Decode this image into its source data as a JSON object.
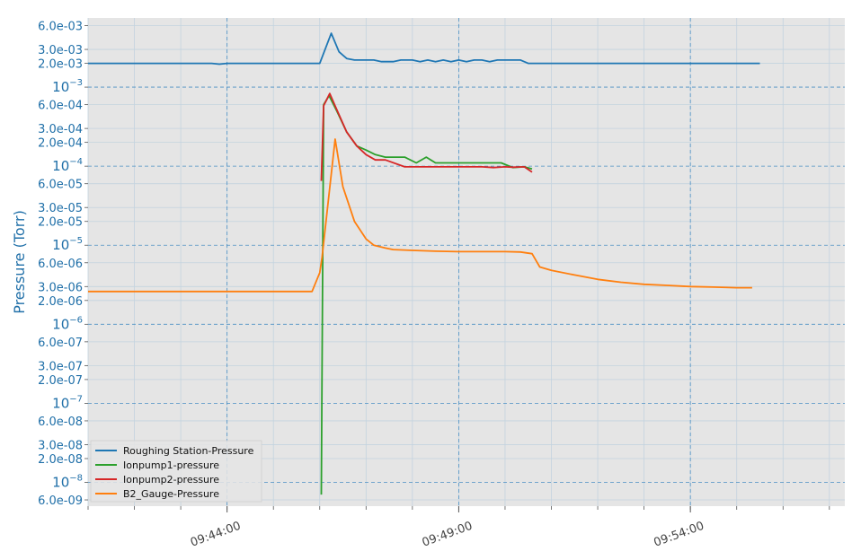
{
  "chart_data": {
    "type": "line",
    "title": "",
    "xlabel": "",
    "ylabel": "Pressure (Torr)",
    "yscale": "log",
    "ylim": [
      5e-09,
      0.0075
    ],
    "xlim": [
      "09:41:00",
      "09:57:20"
    ],
    "grid": true,
    "legend_position": "lower-left",
    "background_color": "#e5e5e5",
    "x_ticks": [
      {
        "time": "09:44:00",
        "label": "09:44:00"
      },
      {
        "time": "09:49:00",
        "label": "09:49:00"
      },
      {
        "time": "09:54:00",
        "label": "09:54:00"
      }
    ],
    "y_ticks": [
      {
        "value": 0.006,
        "label": "6.0e-03",
        "major": false
      },
      {
        "value": 0.003,
        "label": "3.0e-03",
        "major": false
      },
      {
        "value": 0.002,
        "label": "2.0e-03",
        "major": false
      },
      {
        "value": 0.001,
        "label": "10",
        "exp": "−3",
        "major": true
      },
      {
        "value": 0.0006,
        "label": "6.0e-04",
        "major": false
      },
      {
        "value": 0.0003,
        "label": "3.0e-04",
        "major": false
      },
      {
        "value": 0.0002,
        "label": "2.0e-04",
        "major": false
      },
      {
        "value": 0.0001,
        "label": "10",
        "exp": "−4",
        "major": true
      },
      {
        "value": 6e-05,
        "label": "6.0e-05",
        "major": false
      },
      {
        "value": 3e-05,
        "label": "3.0e-05",
        "major": false
      },
      {
        "value": 2e-05,
        "label": "2.0e-05",
        "major": false
      },
      {
        "value": 1e-05,
        "label": "10",
        "exp": "−5",
        "major": true
      },
      {
        "value": 6e-06,
        "label": "6.0e-06",
        "major": false
      },
      {
        "value": 3e-06,
        "label": "3.0e-06",
        "major": false
      },
      {
        "value": 2e-06,
        "label": "2.0e-06",
        "major": false
      },
      {
        "value": 1e-06,
        "label": "10",
        "exp": "−6",
        "major": true
      },
      {
        "value": 6e-07,
        "label": "6.0e-07",
        "major": false
      },
      {
        "value": 3e-07,
        "label": "3.0e-07",
        "major": false
      },
      {
        "value": 2e-07,
        "label": "2.0e-07",
        "major": false
      },
      {
        "value": 1e-07,
        "label": "10",
        "exp": "−7",
        "major": true
      },
      {
        "value": 6e-08,
        "label": "6.0e-08",
        "major": false
      },
      {
        "value": 3e-08,
        "label": "3.0e-08",
        "major": false
      },
      {
        "value": 2e-08,
        "label": "2.0e-08",
        "major": false
      },
      {
        "value": 1e-08,
        "label": "10",
        "exp": "−8",
        "major": true
      },
      {
        "value": 6e-09,
        "label": "6.0e-09",
        "major": false
      }
    ],
    "series": [
      {
        "name": "Roughing Station-Pressure",
        "color": "#1f77b4",
        "points": [
          [
            "09:41:00",
            0.002
          ],
          [
            "09:43:40",
            0.002
          ],
          [
            "09:43:50",
            0.00195
          ],
          [
            "09:44:00",
            0.002
          ],
          [
            "09:46:00",
            0.002
          ],
          [
            "09:46:15",
            0.0048
          ],
          [
            "09:46:25",
            0.0028
          ],
          [
            "09:46:35",
            0.0023
          ],
          [
            "09:46:45",
            0.0022
          ],
          [
            "09:47:10",
            0.0022
          ],
          [
            "09:47:20",
            0.0021
          ],
          [
            "09:47:35",
            0.0021
          ],
          [
            "09:47:45",
            0.0022
          ],
          [
            "09:48:00",
            0.0022
          ],
          [
            "09:48:10",
            0.0021
          ],
          [
            "09:48:20",
            0.0022
          ],
          [
            "09:48:30",
            0.0021
          ],
          [
            "09:48:40",
            0.0022
          ],
          [
            "09:48:50",
            0.0021
          ],
          [
            "09:49:00",
            0.0022
          ],
          [
            "09:49:10",
            0.0021
          ],
          [
            "09:49:20",
            0.0022
          ],
          [
            "09:49:30",
            0.0022
          ],
          [
            "09:49:40",
            0.0021
          ],
          [
            "09:49:50",
            0.0022
          ],
          [
            "09:50:20",
            0.0022
          ],
          [
            "09:50:30",
            0.002
          ],
          [
            "09:55:30",
            0.002
          ]
        ]
      },
      {
        "name": "Ionpump1-pressure",
        "color": "#2ca02c",
        "points": [
          [
            "09:46:02",
            7e-09
          ],
          [
            "09:46:05",
            0.0006
          ],
          [
            "09:46:12",
            0.00078
          ],
          [
            "09:46:22",
            0.0005
          ],
          [
            "09:46:35",
            0.00027
          ],
          [
            "09:46:48",
            0.00018
          ],
          [
            "09:47:00",
            0.00016
          ],
          [
            "09:47:12",
            0.00014
          ],
          [
            "09:47:25",
            0.00013
          ],
          [
            "09:47:50",
            0.00013
          ],
          [
            "09:48:05",
            0.00011
          ],
          [
            "09:48:18",
            0.00013
          ],
          [
            "09:48:30",
            0.00011
          ],
          [
            "09:49:00",
            0.00011
          ],
          [
            "09:49:30",
            0.00011
          ],
          [
            "09:49:55",
            0.00011
          ],
          [
            "09:50:10",
            9.6e-05
          ],
          [
            "09:50:25",
            9.8e-05
          ],
          [
            "09:50:35",
            9.2e-05
          ]
        ]
      },
      {
        "name": "Ionpump2-pressure",
        "color": "#d62728",
        "points": [
          [
            "09:46:02",
            6.5e-05
          ],
          [
            "09:46:05",
            0.00058
          ],
          [
            "09:46:13",
            0.00083
          ],
          [
            "09:46:22",
            0.00052
          ],
          [
            "09:46:35",
            0.00027
          ],
          [
            "09:46:48",
            0.00018
          ],
          [
            "09:47:00",
            0.00014
          ],
          [
            "09:47:12",
            0.00012
          ],
          [
            "09:47:25",
            0.00012
          ],
          [
            "09:47:50",
            9.8e-05
          ],
          [
            "09:49:00",
            9.8e-05
          ],
          [
            "09:49:30",
            9.8e-05
          ],
          [
            "09:49:45",
            9.6e-05
          ],
          [
            "09:50:00",
            9.8e-05
          ],
          [
            "09:50:10",
            9.7e-05
          ],
          [
            "09:50:25",
            9.8e-05
          ],
          [
            "09:50:35",
            8.4e-05
          ]
        ]
      },
      {
        "name": "B2_Gauge-Pressure",
        "color": "#ff7f0e",
        "points": [
          [
            "09:41:00",
            2.6e-06
          ],
          [
            "09:45:50",
            2.6e-06
          ],
          [
            "09:46:00",
            4.5e-06
          ],
          [
            "09:46:03",
            7e-06
          ],
          [
            "09:46:20",
            0.00022
          ],
          [
            "09:46:30",
            5.5e-05
          ],
          [
            "09:46:45",
            2e-05
          ],
          [
            "09:47:00",
            1.2e-05
          ],
          [
            "09:47:10",
            1e-05
          ],
          [
            "09:47:25",
            9.2e-06
          ],
          [
            "09:47:35",
            8.8e-06
          ],
          [
            "09:48:00",
            8.6e-06
          ],
          [
            "09:48:30",
            8.4e-06
          ],
          [
            "09:49:00",
            8.3e-06
          ],
          [
            "09:49:30",
            8.3e-06
          ],
          [
            "09:50:00",
            8.3e-06
          ],
          [
            "09:50:20",
            8.2e-06
          ],
          [
            "09:50:35",
            7.8e-06
          ],
          [
            "09:50:45",
            5.3e-06
          ],
          [
            "09:51:00",
            4.8e-06
          ],
          [
            "09:51:30",
            4.2e-06
          ],
          [
            "09:52:00",
            3.7e-06
          ],
          [
            "09:52:30",
            3.4e-06
          ],
          [
            "09:53:00",
            3.2e-06
          ],
          [
            "09:53:30",
            3.1e-06
          ],
          [
            "09:54:00",
            3e-06
          ],
          [
            "09:54:30",
            2.95e-06
          ],
          [
            "09:55:00",
            2.9e-06
          ],
          [
            "09:55:20",
            2.9e-06
          ]
        ]
      }
    ]
  }
}
